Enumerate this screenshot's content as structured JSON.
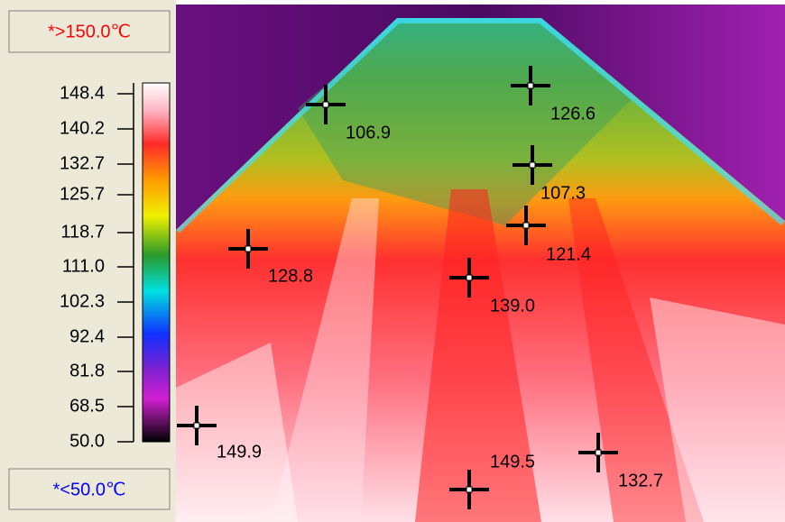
{
  "range": {
    "max_label": "*>150.0℃",
    "min_label": "*<50.0℃"
  },
  "scale": {
    "ticks": [
      "148.4",
      "140.2",
      "132.7",
      "125.7",
      "118.7",
      "111.0",
      "102.3",
      "92.4",
      "81.8",
      "68.5",
      "50.0"
    ]
  },
  "markers": [
    {
      "label": "106.9"
    },
    {
      "label": "126.6"
    },
    {
      "label": "107.3"
    },
    {
      "label": "121.4"
    },
    {
      "label": "128.8"
    },
    {
      "label": "139.0"
    },
    {
      "label": "149.9"
    },
    {
      "label": "149.5"
    },
    {
      "label": "132.7"
    }
  ]
}
